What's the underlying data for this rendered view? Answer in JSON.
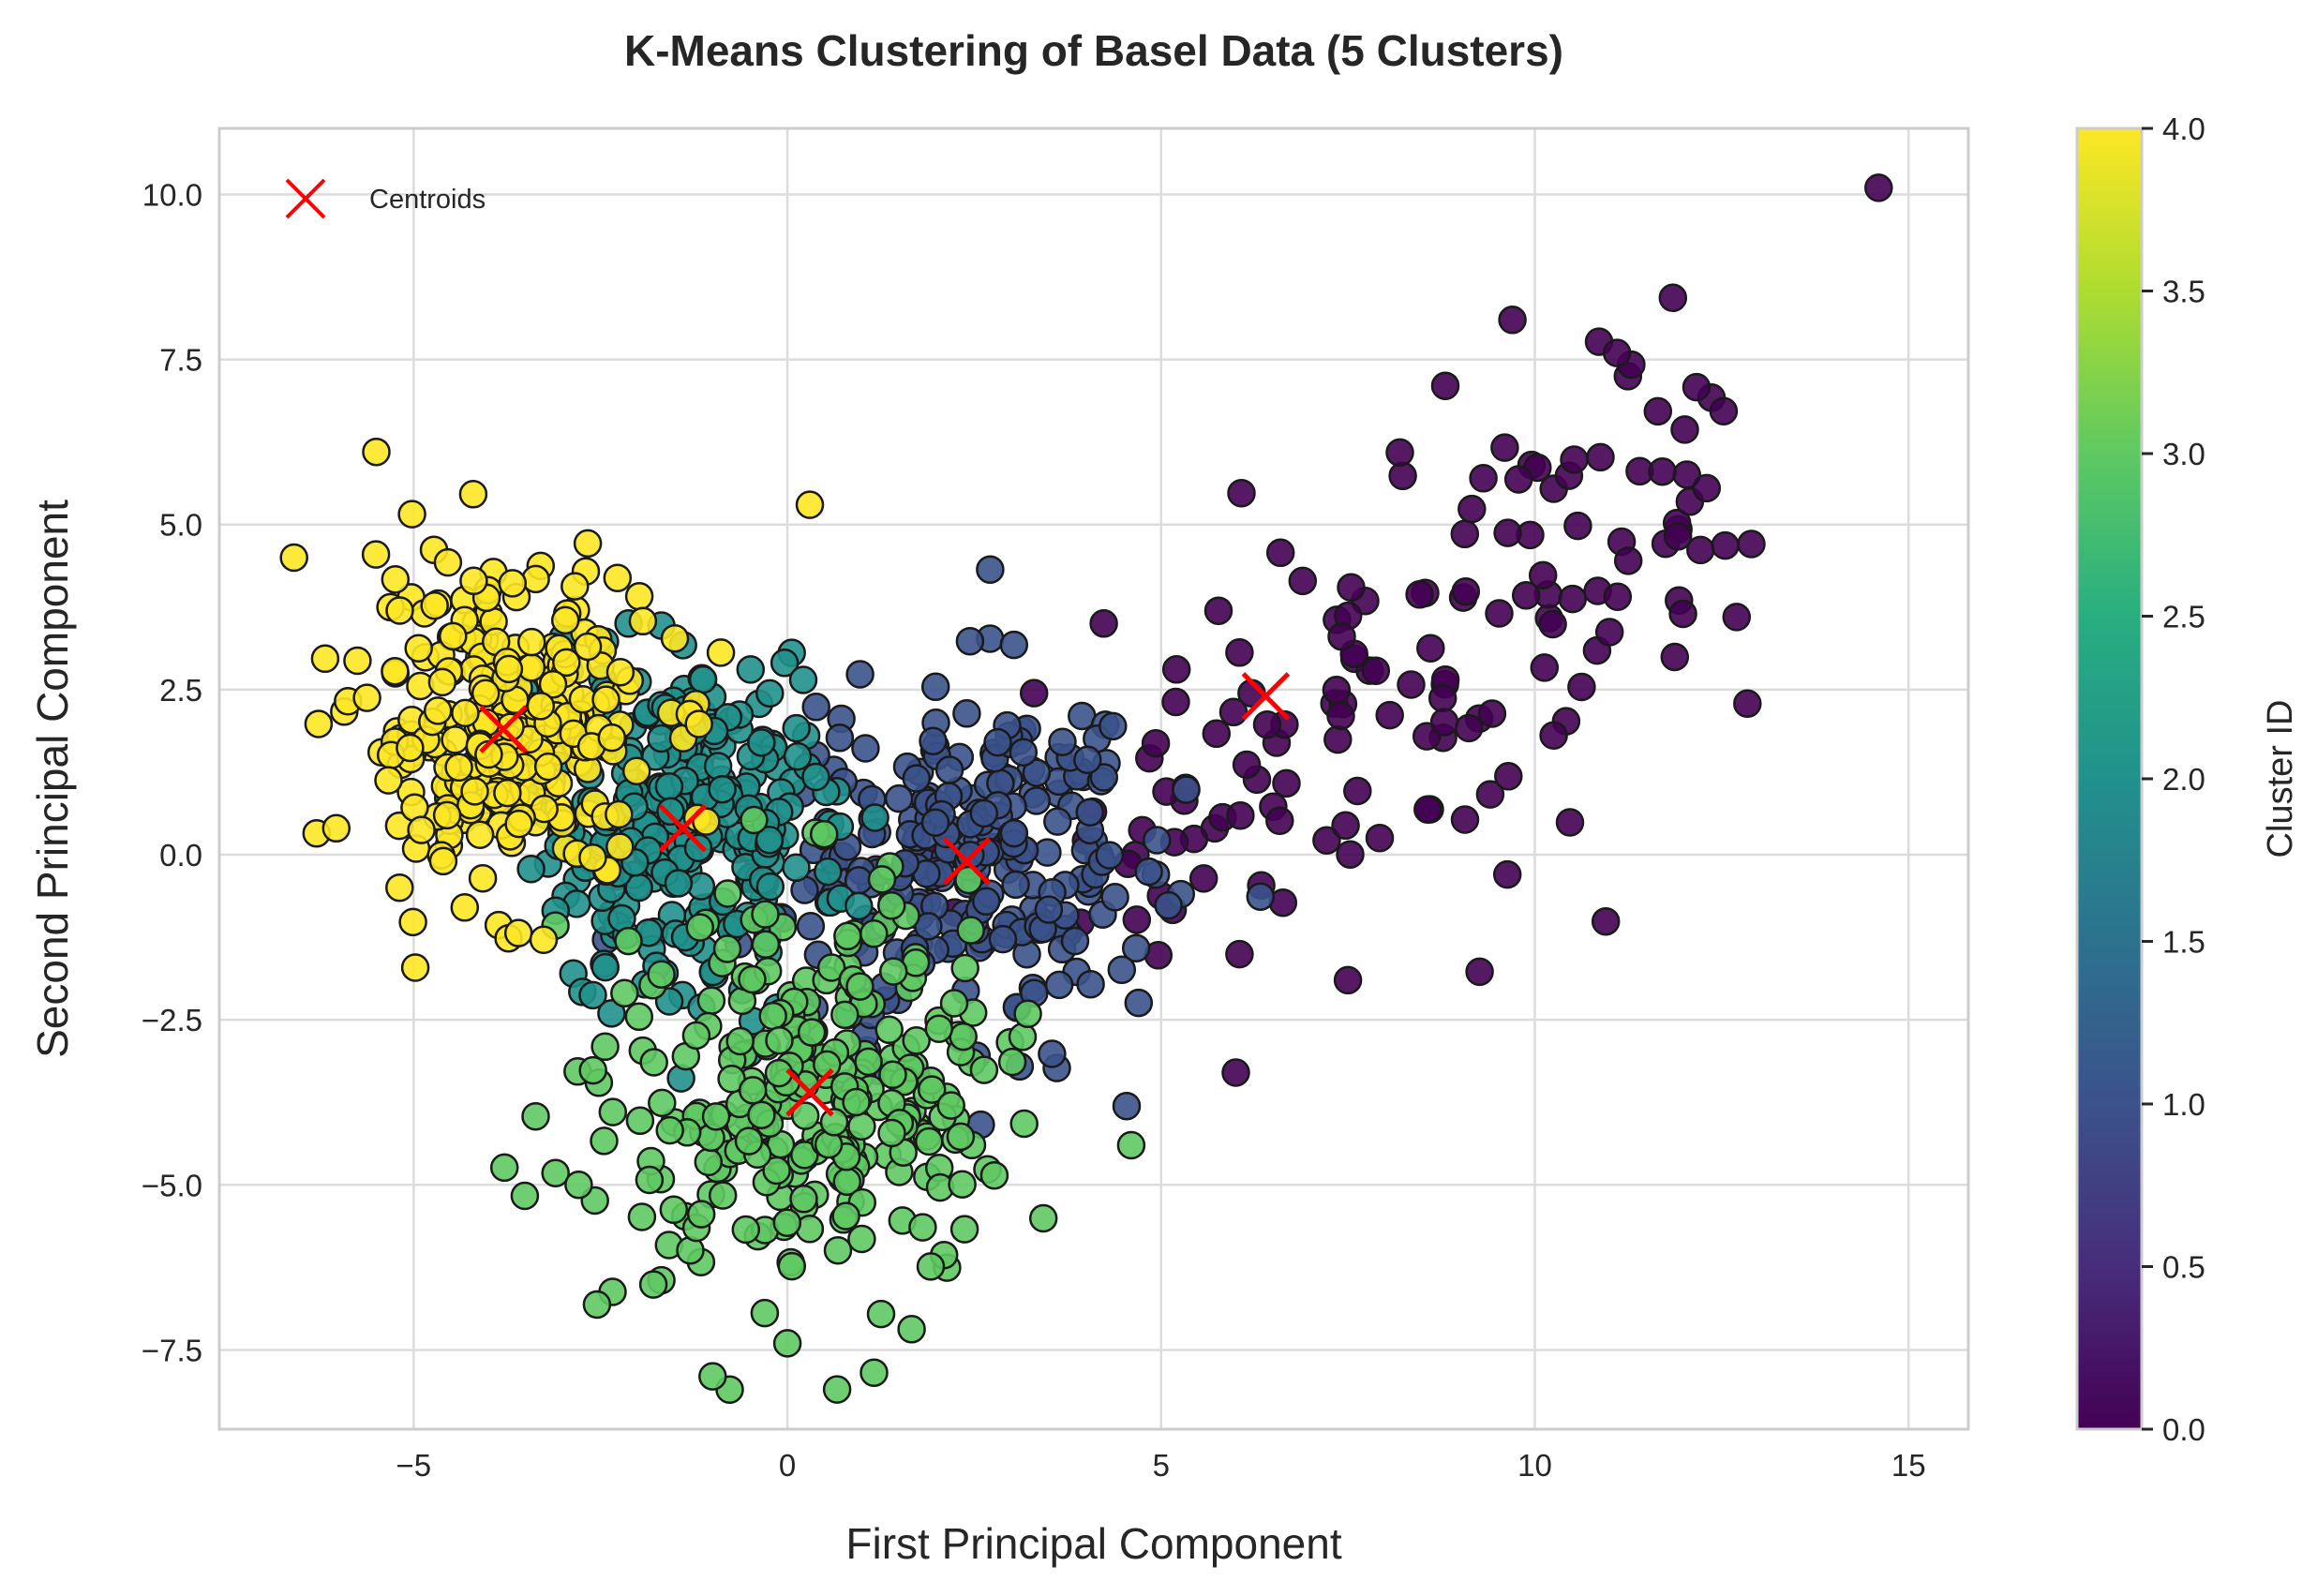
{
  "chart_data": {
    "type": "scatter",
    "title": "K-Means Clustering of Basel Data (5 Clusters)",
    "xlabel": "First Principal Component",
    "ylabel": "Second Principal Component",
    "xlim": [
      -7.6,
      15.8
    ],
    "ylim": [
      -8.7,
      11.0
    ],
    "xticks": [
      -5,
      0,
      5,
      10,
      15
    ],
    "yticks": [
      -7.5,
      -5.0,
      -2.5,
      0.0,
      2.5,
      5.0,
      7.5,
      10.0
    ],
    "xtick_labels": [
      "−5",
      "0",
      "5",
      "10",
      "15"
    ],
    "ytick_labels": [
      "−7.5",
      "−5.0",
      "−2.5",
      "0.0",
      "2.5",
      "5.0",
      "7.5",
      "10.0"
    ],
    "grid": true,
    "colormap": "viridis",
    "colorbar": {
      "label": "Cluster ID",
      "min": 0.0,
      "max": 4.0,
      "ticks": [
        0.0,
        0.5,
        1.0,
        1.5,
        2.0,
        2.5,
        3.0,
        3.5,
        4.0
      ],
      "tick_labels": [
        "0.0",
        "0.5",
        "1.0",
        "1.5",
        "2.0",
        "2.5",
        "3.0",
        "3.5",
        "4.0"
      ]
    },
    "legend": {
      "placement": "top-left",
      "entries": [
        {
          "label": "Centroids",
          "marker": "x",
          "color": "#ff0000"
        }
      ]
    },
    "centroids": [
      {
        "cluster": 0,
        "x": 6.4,
        "y": 2.4
      },
      {
        "cluster": 1,
        "x": 2.4,
        "y": -0.1
      },
      {
        "cluster": 2,
        "x": -1.4,
        "y": 0.4
      },
      {
        "cluster": 3,
        "x": 0.3,
        "y": -3.6
      },
      {
        "cluster": 4,
        "x": -3.8,
        "y": 1.9
      }
    ],
    "clusters": [
      {
        "id": 0,
        "color": "#440154",
        "count": 150,
        "center": [
          6.4,
          2.4
        ],
        "spread": [
          2.3,
          2.2
        ]
      },
      {
        "id": 1,
        "color": "#3b528b",
        "count": 260,
        "center": [
          2.4,
          -0.1
        ],
        "spread": [
          1.2,
          1.4
        ]
      },
      {
        "id": 2,
        "color": "#21918c",
        "count": 280,
        "center": [
          -1.4,
          0.4
        ],
        "spread": [
          1.1,
          1.3
        ]
      },
      {
        "id": 3,
        "color": "#5ec962",
        "count": 300,
        "center": [
          0.3,
          -3.6
        ],
        "spread": [
          1.3,
          1.5
        ]
      },
      {
        "id": 4,
        "color": "#fde725",
        "count": 280,
        "center": [
          -3.8,
          1.9
        ],
        "spread": [
          1.0,
          1.2
        ]
      }
    ],
    "notable_points": [
      {
        "cluster": 0,
        "x": 14.6,
        "y": 10.1
      },
      {
        "cluster": 0,
        "x": 9.7,
        "y": 8.1
      },
      {
        "cluster": 0,
        "x": 11.1,
        "y": 7.6
      },
      {
        "cluster": 0,
        "x": 12.7,
        "y": 3.6
      },
      {
        "cluster": 0,
        "x": 6.0,
        "y": -3.3
      },
      {
        "cluster": 0,
        "x": 7.5,
        "y": -1.9
      },
      {
        "cluster": 4,
        "x": -5.5,
        "y": 6.1
      },
      {
        "cluster": 4,
        "x": -6.6,
        "y": 4.5
      },
      {
        "cluster": 4,
        "x": 0.3,
        "y": 5.3
      },
      {
        "cluster": 3,
        "x": -1.0,
        "y": -7.9
      },
      {
        "cluster": 3,
        "x": 0.0,
        "y": -7.4
      },
      {
        "cluster": 3,
        "x": 4.6,
        "y": -4.4
      }
    ]
  }
}
